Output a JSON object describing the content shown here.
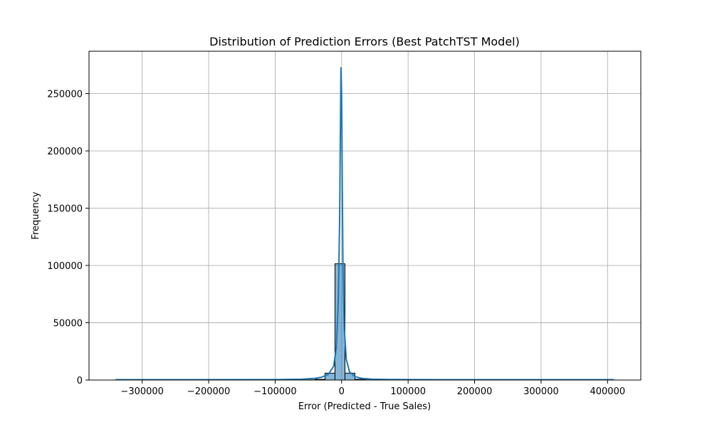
{
  "chart_data": {
    "type": "histogram",
    "title": "Distribution of Prediction Errors (Best PatchTST Model)",
    "xlabel": "Error (Predicted - True Sales)",
    "ylabel": "Frequency",
    "xlim": [
      -380000,
      450000
    ],
    "ylim": [
      0,
      287000
    ],
    "xticks": [
      -300000,
      -200000,
      -100000,
      0,
      100000,
      200000,
      300000,
      400000
    ],
    "yticks": [
      0,
      50000,
      100000,
      150000,
      200000,
      250000
    ],
    "grid": true,
    "bins": [
      {
        "x0": -340000,
        "x1": -325000,
        "count": 0
      },
      {
        "x0": -325000,
        "x1": -310000,
        "count": 0
      },
      {
        "x0": -310000,
        "x1": -295000,
        "count": 0
      },
      {
        "x0": -295000,
        "x1": -280000,
        "count": 0
      },
      {
        "x0": -280000,
        "x1": -265000,
        "count": 0
      },
      {
        "x0": -265000,
        "x1": -250000,
        "count": 0
      },
      {
        "x0": -250000,
        "x1": -235000,
        "count": 0
      },
      {
        "x0": -235000,
        "x1": -220000,
        "count": 0
      },
      {
        "x0": -220000,
        "x1": -205000,
        "count": 0
      },
      {
        "x0": -205000,
        "x1": -190000,
        "count": 0
      },
      {
        "x0": -190000,
        "x1": -175000,
        "count": 0
      },
      {
        "x0": -175000,
        "x1": -160000,
        "count": 0
      },
      {
        "x0": -160000,
        "x1": -145000,
        "count": 0
      },
      {
        "x0": -145000,
        "x1": -130000,
        "count": 0
      },
      {
        "x0": -130000,
        "x1": -115000,
        "count": 0
      },
      {
        "x0": -115000,
        "x1": -100000,
        "count": 0
      },
      {
        "x0": -100000,
        "x1": -85000,
        "count": 0
      },
      {
        "x0": -85000,
        "x1": -70000,
        "count": 0
      },
      {
        "x0": -70000,
        "x1": -55000,
        "count": 50
      },
      {
        "x0": -55000,
        "x1": -40000,
        "count": 150
      },
      {
        "x0": -40000,
        "x1": -25000,
        "count": 600
      },
      {
        "x0": -25000,
        "x1": -10000,
        "count": 6000
      },
      {
        "x0": -10000,
        "x1": 5000,
        "count": 101500
      },
      {
        "x0": 5000,
        "x1": 20000,
        "count": 6000
      },
      {
        "x0": 20000,
        "x1": 35000,
        "count": 700
      },
      {
        "x0": 35000,
        "x1": 50000,
        "count": 200
      },
      {
        "x0": 50000,
        "x1": 65000,
        "count": 50
      },
      {
        "x0": 65000,
        "x1": 80000,
        "count": 0
      },
      {
        "x0": 80000,
        "x1": 95000,
        "count": 0
      },
      {
        "x0": 95000,
        "x1": 110000,
        "count": 0
      },
      {
        "x0": 110000,
        "x1": 125000,
        "count": 0
      },
      {
        "x0": 125000,
        "x1": 140000,
        "count": 0
      },
      {
        "x0": 140000,
        "x1": 155000,
        "count": 0
      },
      {
        "x0": 155000,
        "x1": 170000,
        "count": 0
      },
      {
        "x0": 170000,
        "x1": 185000,
        "count": 0
      },
      {
        "x0": 185000,
        "x1": 200000,
        "count": 0
      },
      {
        "x0": 200000,
        "x1": 215000,
        "count": 0
      },
      {
        "x0": 215000,
        "x1": 230000,
        "count": 0
      },
      {
        "x0": 230000,
        "x1": 245000,
        "count": 0
      },
      {
        "x0": 245000,
        "x1": 260000,
        "count": 0
      },
      {
        "x0": 260000,
        "x1": 275000,
        "count": 0
      },
      {
        "x0": 275000,
        "x1": 290000,
        "count": 0
      },
      {
        "x0": 290000,
        "x1": 305000,
        "count": 0
      },
      {
        "x0": 305000,
        "x1": 320000,
        "count": 0
      },
      {
        "x0": 320000,
        "x1": 335000,
        "count": 0
      },
      {
        "x0": 335000,
        "x1": 350000,
        "count": 0
      },
      {
        "x0": 350000,
        "x1": 365000,
        "count": 0
      },
      {
        "x0": 365000,
        "x1": 380000,
        "count": 0
      },
      {
        "x0": 380000,
        "x1": 395000,
        "count": 0
      },
      {
        "x0": 395000,
        "x1": 410000,
        "count": 0
      }
    ],
    "kde": {
      "x": [
        -340000,
        -100000,
        -60000,
        -40000,
        -30000,
        -20000,
        -12000,
        -8000,
        -5000,
        -3000,
        -2000,
        -1000,
        0,
        1000,
        2000,
        4000,
        7000,
        12000,
        20000,
        30000,
        45000,
        70000,
        150000,
        410000
      ],
      "y": [
        300,
        400,
        700,
        1500,
        2500,
        5000,
        12000,
        28000,
        70000,
        140000,
        210000,
        273000,
        250000,
        170000,
        100000,
        45000,
        18000,
        7000,
        3000,
        1500,
        800,
        500,
        300,
        300
      ]
    },
    "colors": {
      "bar_fill": "#1f77b4",
      "bar_edge": "#000000",
      "kde_line": "#1f77b4",
      "grid": "#b0b0b0"
    }
  }
}
